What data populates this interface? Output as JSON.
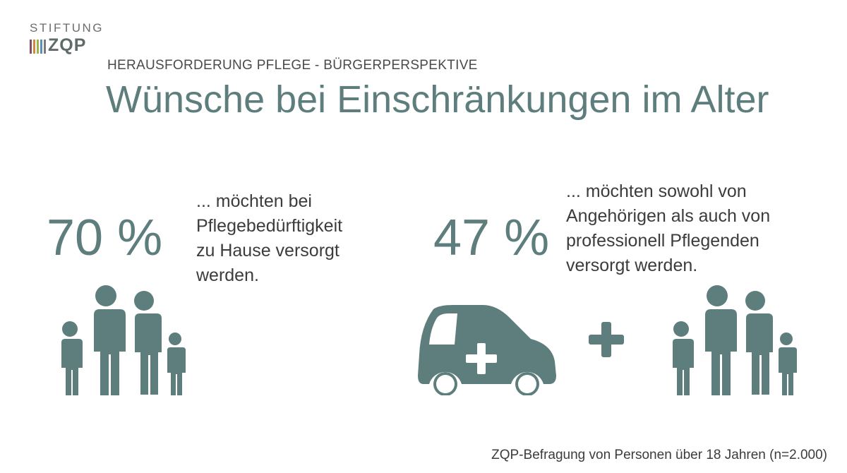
{
  "logo": {
    "top": "STIFTUNG",
    "text": "ZQP",
    "bar_colors": [
      "#8a4b6a",
      "#d08a3d",
      "#9bb54a",
      "#5b8fb8",
      "#7a7a7a"
    ]
  },
  "header": {
    "subtitle": "HERAUSFORDERUNG PFLEGE - BÜRGERPERSPEKTIVE",
    "title": "Wünsche bei Einschränkungen im Alter"
  },
  "left": {
    "stat": "70 %",
    "lines": [
      "... möchten bei",
      "Pflegebedürftigkeit",
      "zu Hause versorgt",
      "werden."
    ],
    "icon": "family-icon"
  },
  "right": {
    "stat": "47 %",
    "lines": [
      "... möchten sowohl von",
      "Angehörigen als auch von",
      "professionell Pflegenden",
      "versorgt werden."
    ],
    "icons": [
      "care-car-icon",
      "plus-icon",
      "family-icon"
    ]
  },
  "footer": {
    "source": "ZQP-Befragung von Personen über 18 Jahren (n=2.000)"
  },
  "colors": {
    "accent": "#5e7e7d",
    "text": "#3c3c3c"
  }
}
